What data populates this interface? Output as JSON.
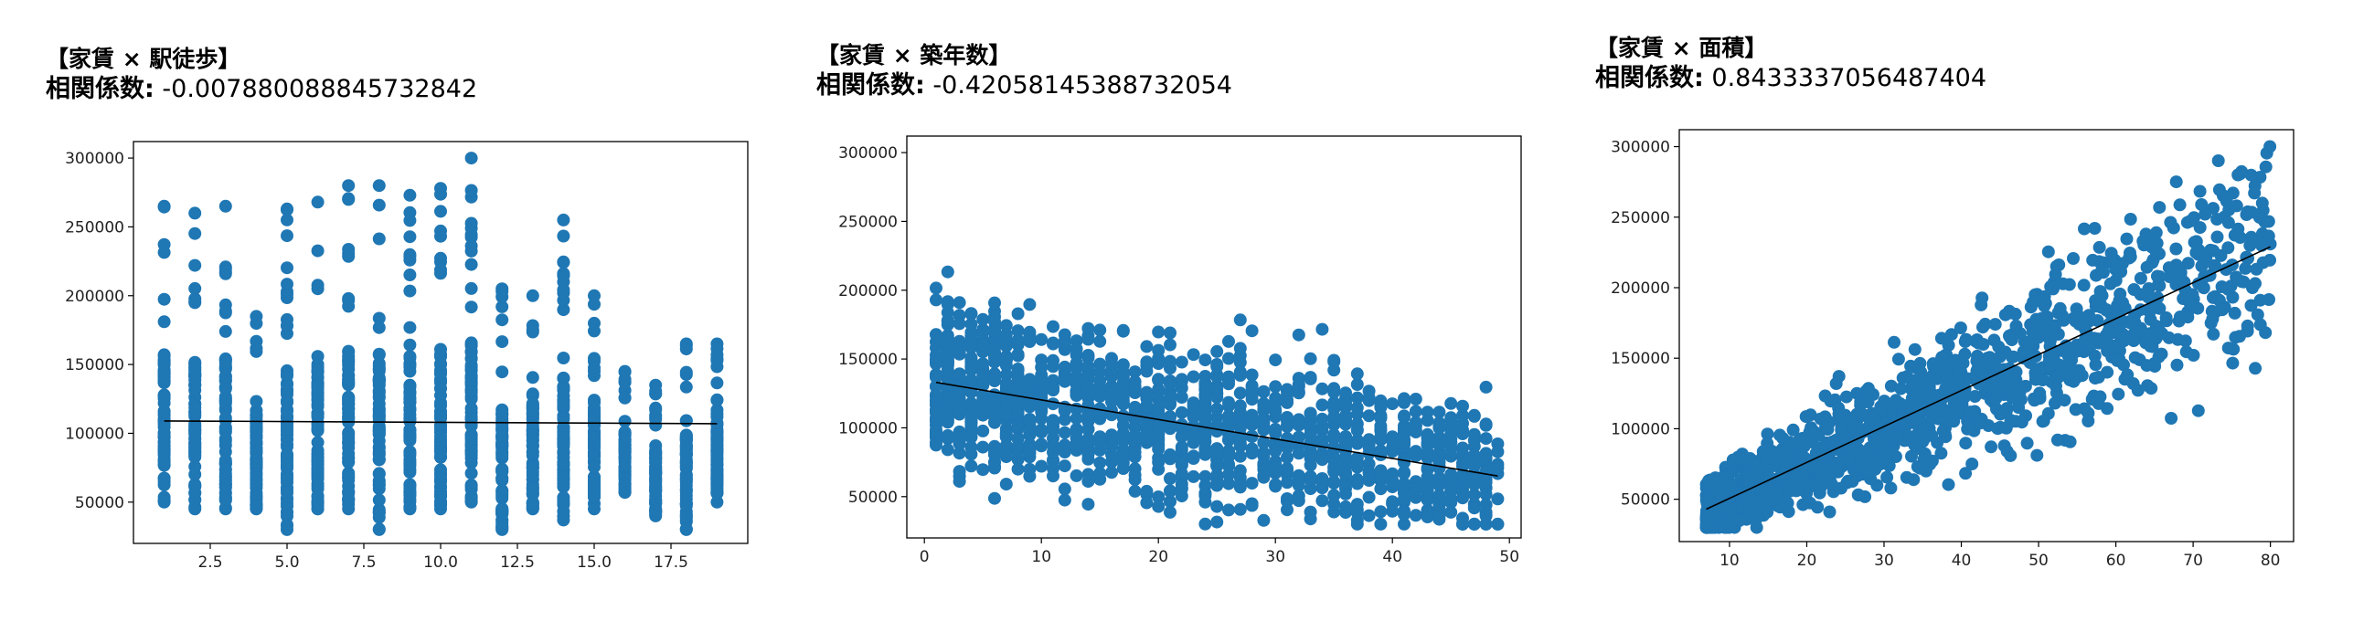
{
  "colors": {
    "points": "#1f77b4",
    "regression_line": "#000000",
    "axes": "#000000"
  },
  "panels": [
    {
      "title": "【家賃 × 駅徒歩】",
      "coef_label": "相関係数:",
      "coef_value": "-0.007880088845732842"
    },
    {
      "title": "【家賃 × 築年数】",
      "coef_label": "相関係数:",
      "coef_value": "-0.42058145388732054"
    },
    {
      "title": "【家賃 × 面積】",
      "coef_label": "相関係数:",
      "coef_value": "0.8433337056487404"
    }
  ],
  "chart_data": [
    {
      "type": "scatter",
      "title": "",
      "xlabel": "",
      "ylabel": "",
      "xlim": [
        0,
        20
      ],
      "ylim": [
        20000,
        312000
      ],
      "xticks": [
        2.5,
        5.0,
        7.5,
        10.0,
        12.5,
        15.0,
        17.5
      ],
      "xtick_labels": [
        "2.5",
        "5.0",
        "7.5",
        "10.0",
        "12.5",
        "15.0",
        "17.5"
      ],
      "yticks": [
        50000,
        100000,
        150000,
        200000,
        250000,
        300000
      ],
      "ytick_labels": [
        "50000",
        "100000",
        "150000",
        "200000",
        "250000",
        "300000"
      ],
      "grid": false,
      "columns": [
        {
          "x": 1,
          "min": 50000,
          "max": 265000
        },
        {
          "x": 2,
          "min": 45000,
          "max": 260000
        },
        {
          "x": 3,
          "min": 45000,
          "max": 265000
        },
        {
          "x": 4,
          "min": 45000,
          "max": 185000
        },
        {
          "x": 5,
          "min": 30000,
          "max": 263000
        },
        {
          "x": 6,
          "min": 45000,
          "max": 268000
        },
        {
          "x": 7,
          "min": 45000,
          "max": 280000
        },
        {
          "x": 8,
          "min": 30000,
          "max": 280000
        },
        {
          "x": 9,
          "min": 45000,
          "max": 273000
        },
        {
          "x": 10,
          "min": 45000,
          "max": 278000
        },
        {
          "x": 11,
          "min": 50000,
          "max": 300000
        },
        {
          "x": 12,
          "min": 30000,
          "max": 205000
        },
        {
          "x": 13,
          "min": 45000,
          "max": 200000
        },
        {
          "x": 14,
          "min": 37000,
          "max": 255000
        },
        {
          "x": 15,
          "min": 45000,
          "max": 200000
        },
        {
          "x": 16,
          "min": 57000,
          "max": 145000
        },
        {
          "x": 17,
          "min": 40000,
          "max": 135000
        },
        {
          "x": 18,
          "min": 30000,
          "max": 165000
        },
        {
          "x": 19,
          "min": 50000,
          "max": 165000
        }
      ],
      "regression_line": {
        "x": [
          1,
          19
        ],
        "y": [
          109000,
          107000
        ]
      }
    },
    {
      "type": "scatter",
      "title": "",
      "xlabel": "",
      "ylabel": "",
      "xlim": [
        -1.5,
        51
      ],
      "ylim": [
        20000,
        312000
      ],
      "xticks": [
        0,
        10,
        20,
        30,
        40,
        50
      ],
      "xtick_labels": [
        "0",
        "10",
        "20",
        "30",
        "40",
        "50"
      ],
      "yticks": [
        50000,
        100000,
        150000,
        200000,
        250000,
        300000
      ],
      "ytick_labels": [
        "50000",
        "100000",
        "150000",
        "200000",
        "250000",
        "300000"
      ],
      "grid": false,
      "trend": {
        "x_range": [
          1,
          49
        ],
        "y_at_start": 133000,
        "y_at_end": 65000,
        "count": 1400
      },
      "regression_line": {
        "x": [
          1,
          49
        ],
        "y": [
          133000,
          65000
        ]
      }
    },
    {
      "type": "scatter",
      "title": "",
      "xlabel": "",
      "ylabel": "",
      "xlim": [
        3.5,
        83
      ],
      "ylim": [
        20000,
        312000
      ],
      "xticks": [
        10,
        20,
        30,
        40,
        50,
        60,
        70,
        80
      ],
      "xtick_labels": [
        "10",
        "20",
        "30",
        "40",
        "50",
        "60",
        "70",
        "80"
      ],
      "yticks": [
        50000,
        100000,
        150000,
        200000,
        250000,
        300000
      ],
      "ytick_labels": [
        "50000",
        "100000",
        "150000",
        "200000",
        "250000",
        "300000"
      ],
      "grid": false,
      "trend": {
        "x_range": [
          7,
          80
        ],
        "y_at_start": 43000,
        "y_at_end": 229000,
        "count": 1400
      },
      "regression_line": {
        "x": [
          7,
          80
        ],
        "y": [
          43000,
          229000
        ]
      }
    }
  ]
}
